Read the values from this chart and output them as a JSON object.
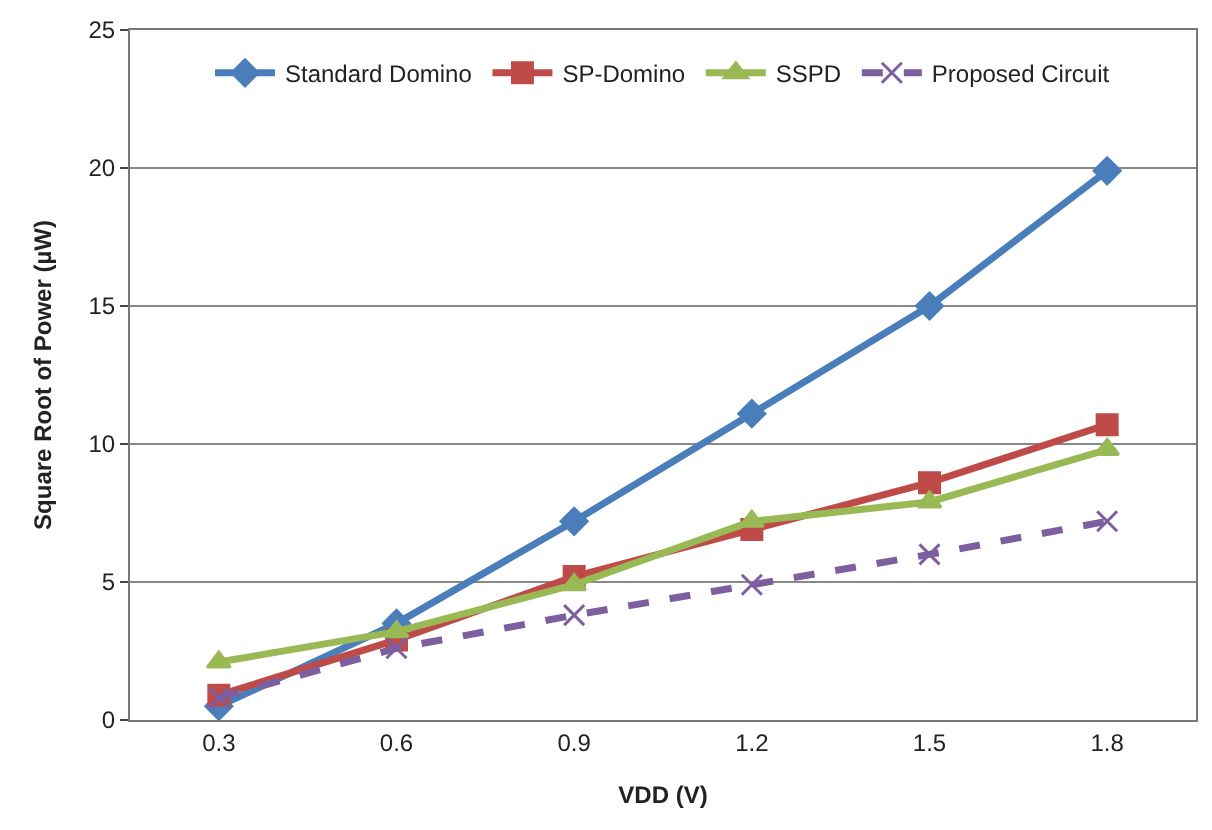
{
  "chart_data": {
    "type": "line",
    "xlabel": "VDD (V)",
    "ylabel": "Square Root of Power (µW)",
    "categories": [
      "0.3",
      "0.6",
      "0.9",
      "1.2",
      "1.5",
      "1.8"
    ],
    "ylim": [
      0,
      25
    ],
    "yticks": [
      0,
      5,
      10,
      15,
      20,
      25
    ],
    "grid": "y",
    "legend": "top",
    "series": [
      {
        "name": "Standard Domino",
        "color": "#4a7ebb",
        "marker": "diamond",
        "line_style": "solid",
        "values": [
          0.5,
          3.5,
          7.2,
          11.1,
          15.0,
          19.9
        ]
      },
      {
        "name": "SP-Domino",
        "color": "#be4b48",
        "marker": "square",
        "line_style": "solid",
        "values": [
          0.9,
          2.9,
          5.2,
          6.9,
          8.6,
          10.7
        ]
      },
      {
        "name": "SSPD",
        "color": "#98b954",
        "marker": "triangle",
        "line_style": "solid",
        "values": [
          2.1,
          3.2,
          4.9,
          7.2,
          7.9,
          9.8
        ]
      },
      {
        "name": "Proposed Circuit",
        "color": "#7d5fa0",
        "marker": "cross",
        "line_style": "dashed",
        "values": [
          0.8,
          2.6,
          3.8,
          4.9,
          6.0,
          7.2
        ]
      }
    ]
  }
}
